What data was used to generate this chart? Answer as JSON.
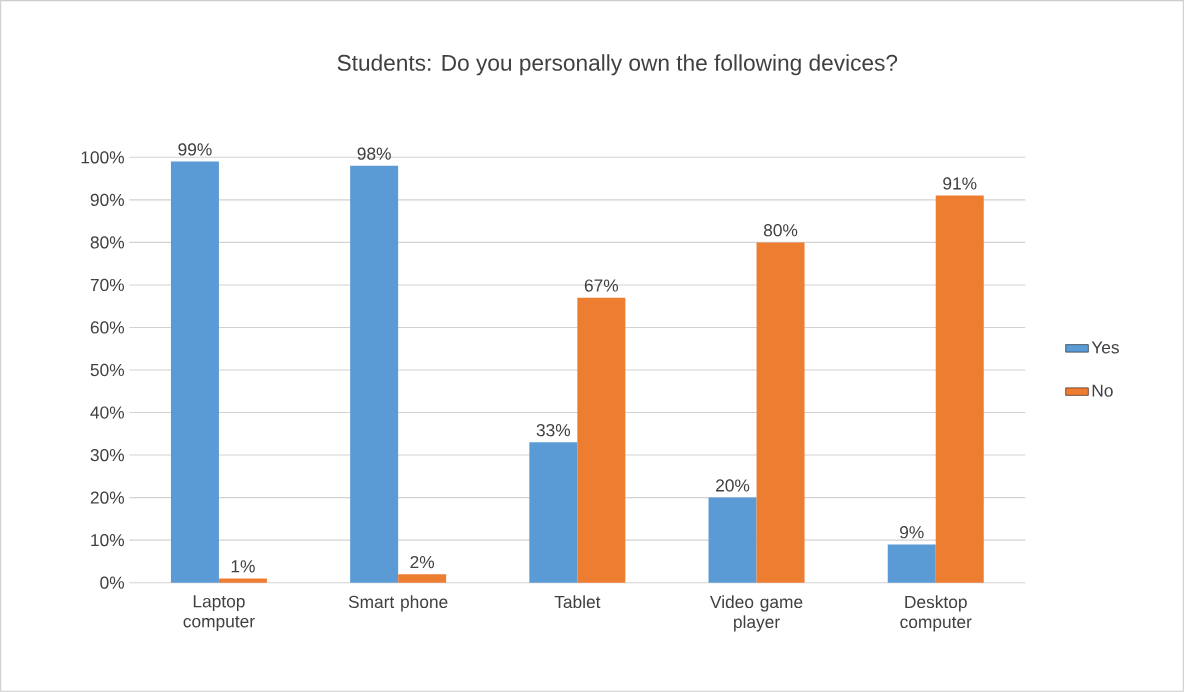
{
  "chart_data": {
    "type": "bar",
    "title": "Students: Do you personally own the following devices?",
    "categories": [
      "Laptop computer",
      "Smart phone",
      "Tablet",
      "Video game player",
      "Desktop computer"
    ],
    "series": [
      {
        "name": "Yes",
        "color": "#5b9bd5",
        "values": [
          99,
          98,
          33,
          20,
          9
        ],
        "value_labels": [
          "99%",
          "98%",
          "33%",
          "20%",
          "9%"
        ]
      },
      {
        "name": "No",
        "color": "#ed7d31",
        "values": [
          1,
          2,
          67,
          80,
          91
        ],
        "value_labels": [
          "1%",
          "2%",
          "67%",
          "80%",
          "91%"
        ]
      }
    ],
    "ylim": [
      0,
      100
    ],
    "yticks": [
      {
        "value": 0,
        "label": "0%"
      },
      {
        "value": 10,
        "label": "10%"
      },
      {
        "value": 20,
        "label": "20%"
      },
      {
        "value": 30,
        "label": "30%"
      },
      {
        "value": 40,
        "label": "40%"
      },
      {
        "value": 50,
        "label": "50%"
      },
      {
        "value": 60,
        "label": "60%"
      },
      {
        "value": 70,
        "label": "70%"
      },
      {
        "value": 80,
        "label": "80%"
      },
      {
        "value": 90,
        "label": "90%"
      },
      {
        "value": 100,
        "label": "100%"
      }
    ],
    "grid": "y",
    "legend": "right"
  }
}
